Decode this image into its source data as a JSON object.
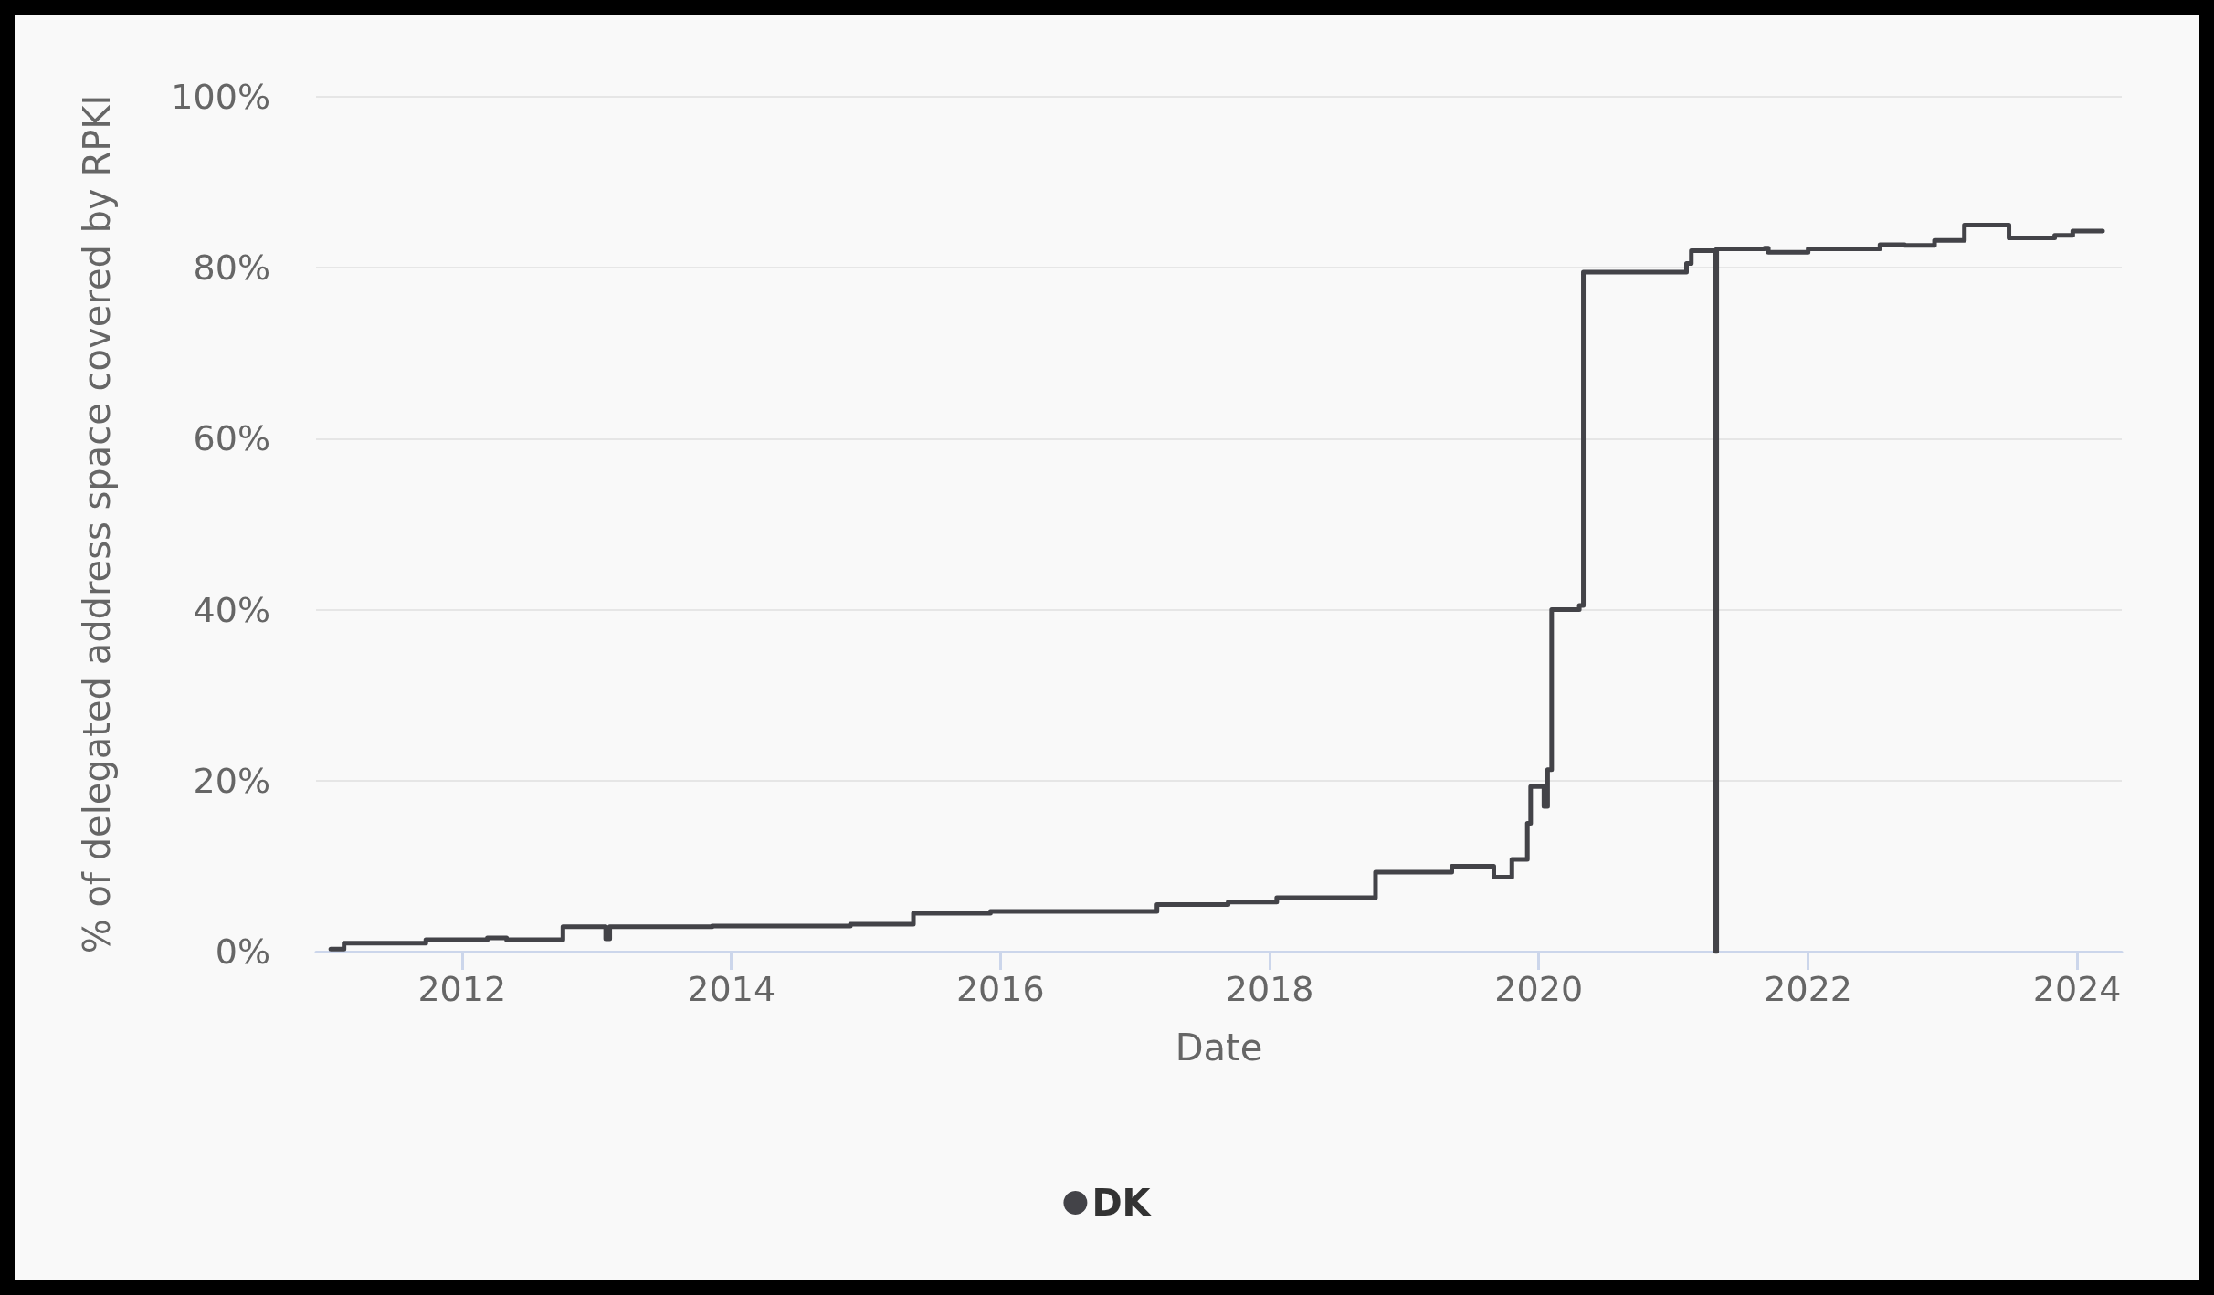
{
  "chart_data": {
    "type": "step",
    "xlabel": "Date",
    "ylabel": "% of delegated address space covered by RPKI",
    "x": [
      "2011-01-10",
      "2011-02-15",
      "2011-09-25",
      "2012-03-10",
      "2012-05-01",
      "2012-10-01",
      "2013-01-25",
      "2013-02-05",
      "2013-11-10",
      "2014-11-20",
      "2015-05-10",
      "2015-12-05",
      "2017-03-01",
      "2017-09-10",
      "2018-01-20",
      "2018-10-15",
      "2019-05-10",
      "2019-09-01",
      "2019-10-20",
      "2019-12-01",
      "2019-12-10",
      "2020-01-15",
      "2020-01-25",
      "2020-02-05",
      "2020-04-20",
      "2020-05-01",
      "2021-02-05",
      "2021-02-18",
      "2021-04-25",
      "2021-04-28",
      "2021-09-05",
      "2021-09-15",
      "2022-01-01",
      "2022-07-15",
      "2022-09-20",
      "2022-12-10",
      "2023-03-01",
      "2023-06-30",
      "2023-11-01",
      "2023-12-20",
      "2024-03-10"
    ],
    "series": [
      {
        "name": "DK",
        "color": "#434348",
        "values": [
          0.3,
          1.0,
          1.4,
          1.6,
          1.4,
          2.9,
          1.5,
          2.9,
          3.0,
          3.2,
          4.5,
          4.7,
          5.5,
          5.8,
          6.3,
          9.3,
          10.0,
          8.7,
          10.8,
          15,
          19.3,
          17,
          21.3,
          40,
          40.5,
          79.5,
          80.5,
          82,
          0,
          82.2,
          82.3,
          81.8,
          82.2,
          82.7,
          82.6,
          83.2,
          85,
          83.5,
          83.8,
          84.3,
          84.3
        ]
      }
    ],
    "xlim": [
      "2010-12-01",
      "2024-05-01"
    ],
    "xticks": [
      "2012",
      "2014",
      "2016",
      "2018",
      "2020",
      "2022",
      "2024"
    ],
    "ylim": [
      0,
      100
    ],
    "yticks": [
      {
        "value": 0,
        "label": "0%"
      },
      {
        "value": 20,
        "label": "20%"
      },
      {
        "value": 40,
        "label": "40%"
      },
      {
        "value": 60,
        "label": "60%"
      },
      {
        "value": 80,
        "label": "80%"
      },
      {
        "value": 100,
        "label": "100%"
      }
    ],
    "grid": "y",
    "legend": "bottom",
    "marker": "none",
    "line_style": "solid"
  }
}
